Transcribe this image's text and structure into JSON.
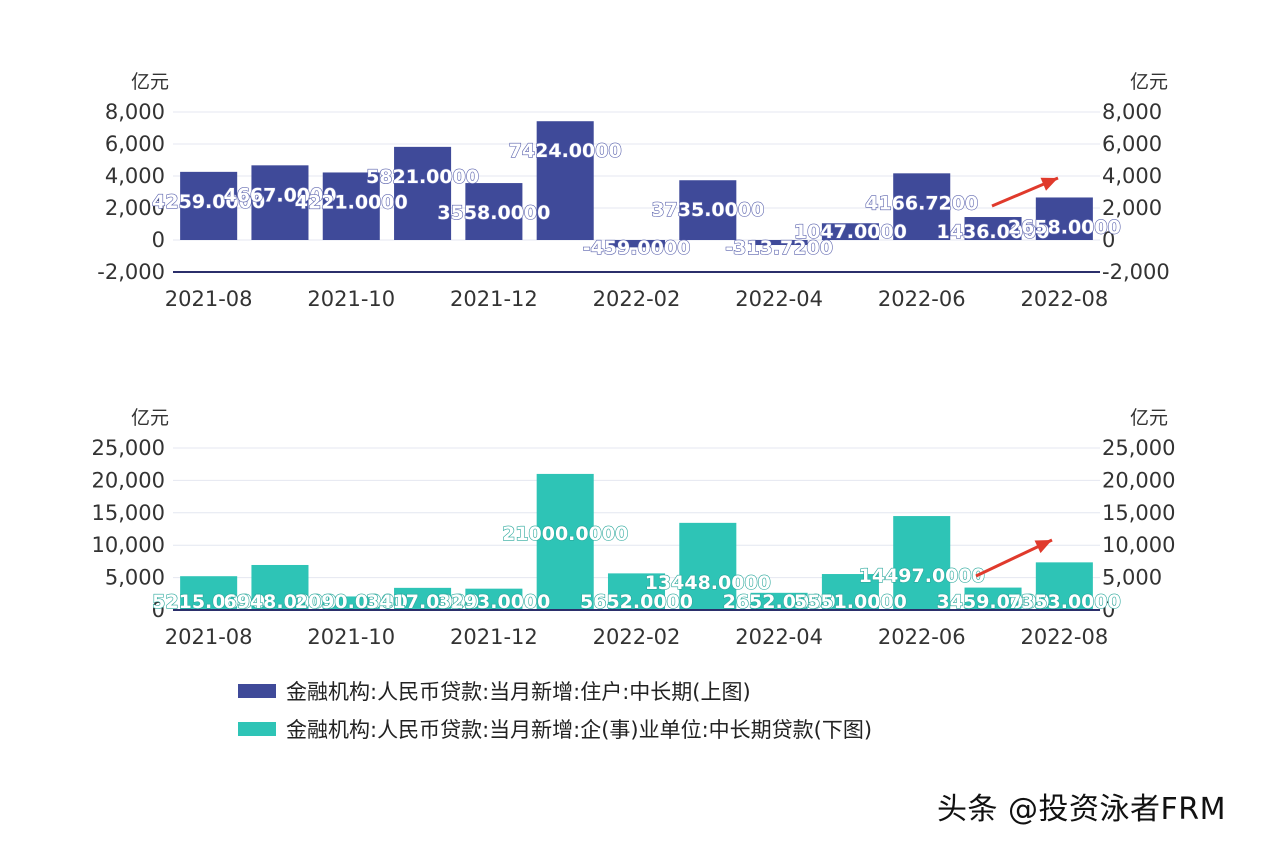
{
  "colors": {
    "top_bar": "#3f4a99",
    "bottom_bar": "#2ec4b6",
    "grid": "#e4e7f0",
    "axis": "#2b2f6b",
    "tick_text": "#333333",
    "arrow": "#e03a2c"
  },
  "chart_data": [
    {
      "type": "bar",
      "unit_left": "亿元",
      "unit_right": "亿元",
      "x_tick_labels": [
        "2021-08",
        "2021-10",
        "2021-12",
        "2022-02",
        "2022-04",
        "2022-06",
        "2022-08"
      ],
      "y_ticks": [
        "8,000",
        "6,000",
        "4,000",
        "2,000",
        "0",
        "-2,000"
      ],
      "ylim": [
        -2000,
        8000
      ],
      "grid": true,
      "series": [
        {
          "name": "金融机构:人民币贷款:当月新增:住户:中长期(上图)",
          "values": [
            4259,
            4667,
            4221,
            5821,
            3558,
            7424,
            -459,
            3735,
            -313.72,
            1047,
            4166.72,
            1436,
            2658
          ],
          "labels": [
            "4259.0000",
            "4667.0000",
            "4221.0000",
            "5821.0000",
            "3558.0000",
            "7424.0000",
            "-459.0000",
            "3735.0000",
            "-313.7200",
            "1047.0000",
            "4166.7200",
            "1436.0000",
            "2658.0000"
          ]
        }
      ]
    },
    {
      "type": "bar",
      "unit_left": "亿元",
      "unit_right": "亿元",
      "x_tick_labels": [
        "2021-08",
        "2021-10",
        "2021-12",
        "2022-02",
        "2022-04",
        "2022-06",
        "2022-08"
      ],
      "y_ticks": [
        "25,000",
        "20,000",
        "15,000",
        "10,000",
        "5,000",
        "0"
      ],
      "ylim": [
        0,
        25000
      ],
      "grid": true,
      "series": [
        {
          "name": "金融机构:人民币贷款:当月新增:企(事)业单位:中长期贷款(下图)",
          "values": [
            5215,
            6948,
            2090,
            3417,
            3293,
            21000,
            5652,
            13448,
            2652,
            5551,
            14497,
            3459,
            7353
          ],
          "labels": [
            "5215.0000",
            "6948.0000",
            "2090.0000",
            "3417.0000",
            "3293.0000",
            "21000.0000",
            "5652.0000",
            "13448.0000",
            "2652.0000",
            "5551.0000",
            "14497.0000",
            "3459.0000",
            "7353.0000"
          ]
        }
      ]
    }
  ],
  "watermark": "头条 @投资泳者FRM"
}
